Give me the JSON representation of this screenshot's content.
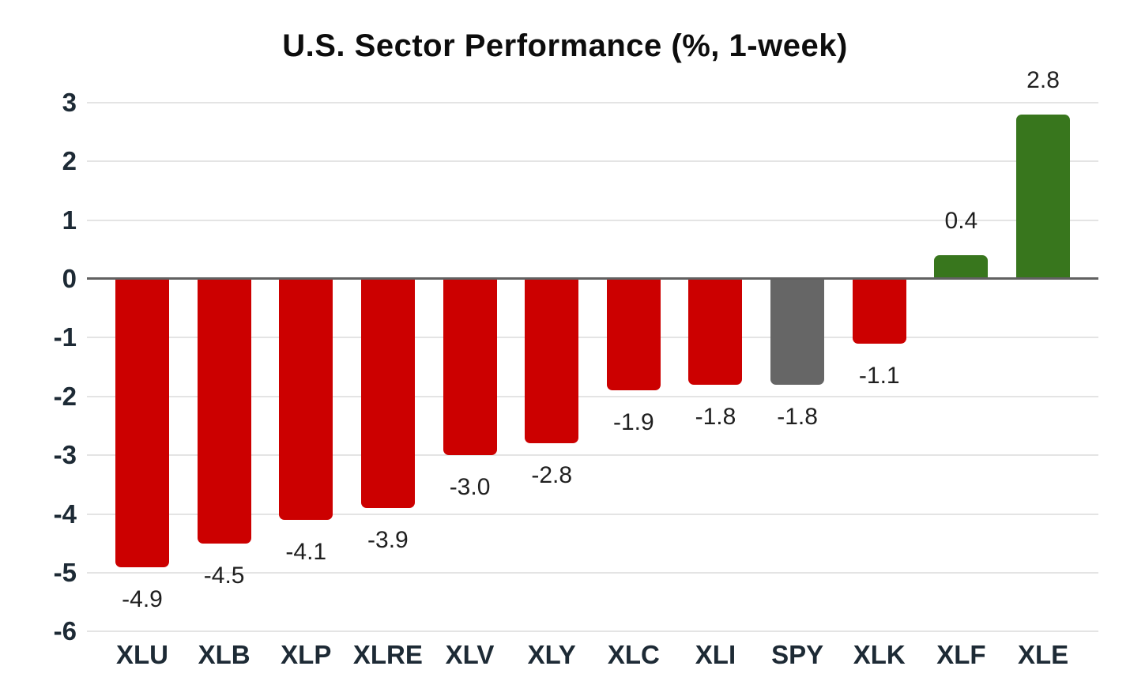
{
  "title": "U.S. Sector Performance (%, 1-week)",
  "chart_data": {
    "type": "bar",
    "title": "U.S. Sector Performance (%, 1-week)",
    "categories": [
      "XLU",
      "XLB",
      "XLP",
      "XLRE",
      "XLV",
      "XLY",
      "XLC",
      "XLI",
      "SPY",
      "XLK",
      "XLF",
      "XLE"
    ],
    "values": [
      -4.9,
      -4.5,
      -4.1,
      -3.9,
      -3.0,
      -2.8,
      -1.9,
      -1.8,
      -1.8,
      -1.1,
      0.4,
      2.8
    ],
    "value_labels": [
      "-4.9",
      "-4.5",
      "-4.1",
      "-3.9",
      "-3.0",
      "-2.8",
      "-1.9",
      "-1.8",
      "-1.8",
      "-1.1",
      "0.4",
      "2.8"
    ],
    "bar_color_keys": [
      "negative",
      "negative",
      "negative",
      "negative",
      "negative",
      "negative",
      "negative",
      "negative",
      "benchmark",
      "negative",
      "positive",
      "positive"
    ],
    "colors": {
      "negative": "#cc0000",
      "benchmark": "#666666",
      "positive": "#38761d"
    },
    "xlabel": "",
    "ylabel": "",
    "y_ticks": [
      3,
      2,
      1,
      0,
      -1,
      -2,
      -3,
      -4,
      -5,
      -6
    ],
    "ylim": [
      -6,
      3
    ],
    "grid": true,
    "legend": "none"
  }
}
